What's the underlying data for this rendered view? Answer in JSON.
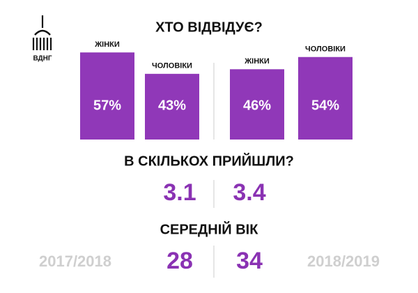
{
  "logo": "ВДНГ",
  "title": "ХТО ВІДВІДУЄ?",
  "periods": [
    "2017/2018",
    "2018/2019"
  ],
  "chart_data": [
    {
      "type": "bar",
      "categories": [
        "ЖІНКИ",
        "ЧОЛОВІКИ"
      ],
      "values": [
        57,
        43
      ],
      "value_labels": [
        "57%",
        "43%"
      ],
      "color": "#9038b8"
    },
    {
      "type": "bar",
      "categories": [
        "ЖІНКИ",
        "ЧОЛОВІКИ"
      ],
      "values": [
        46,
        54
      ],
      "value_labels": [
        "46%",
        "54%"
      ],
      "color": "#9038b8"
    }
  ],
  "group_size": {
    "title": "В СКІЛЬКОХ ПРИЙШЛИ?",
    "values": [
      3.1,
      3.4
    ]
  },
  "average_age": {
    "title": "СЕРЕДНІЙ ВІК",
    "values": [
      28,
      34
    ]
  }
}
